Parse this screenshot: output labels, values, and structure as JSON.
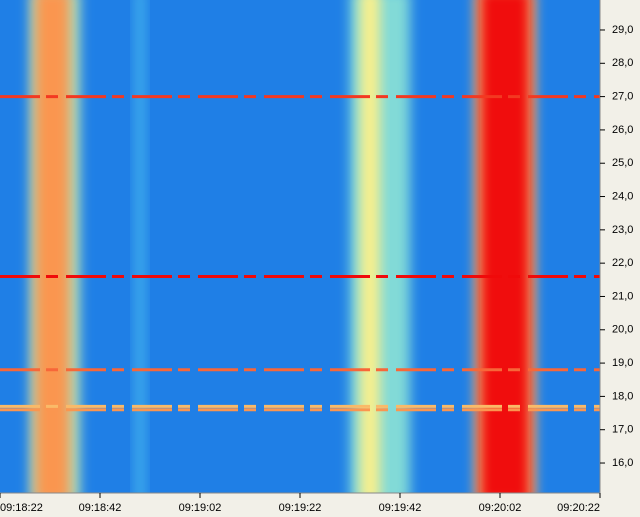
{
  "chart_data": {
    "type": "spectrogram",
    "background_color": "#1f7fe6",
    "xlim": [
      33502,
      33622
    ],
    "xticks": [
      {
        "value": 33502,
        "label": "09:18:22"
      },
      {
        "value": 33522,
        "label": "09:18:42"
      },
      {
        "value": 33542,
        "label": "09:19:02"
      },
      {
        "value": 33562,
        "label": "09:19:22"
      },
      {
        "value": 33582,
        "label": "09:19:42"
      },
      {
        "value": 33602,
        "label": "09:20:02"
      },
      {
        "value": 33622,
        "label": "09:20:22"
      }
    ],
    "ylim": [
      15.1,
      29.9
    ],
    "yticks": [
      {
        "value": 16,
        "label": "16,0"
      },
      {
        "value": 17,
        "label": "17,0"
      },
      {
        "value": 18,
        "label": "18,0"
      },
      {
        "value": 19,
        "label": "19,0"
      },
      {
        "value": 20,
        "label": "20,0"
      },
      {
        "value": 21,
        "label": "21,0"
      },
      {
        "value": 22,
        "label": "22,0"
      },
      {
        "value": 23,
        "label": "23,0"
      },
      {
        "value": 24,
        "label": "24,0"
      },
      {
        "value": 25,
        "label": "25,0"
      },
      {
        "value": 26,
        "label": "26,0"
      },
      {
        "value": 27,
        "label": "27,0"
      },
      {
        "value": 28,
        "label": "28,0"
      },
      {
        "value": 29,
        "label": "29,0"
      }
    ],
    "bands": [
      {
        "x_start": 33508,
        "x_end": 33518,
        "level": 0.35
      },
      {
        "x_start": 33509,
        "x_end": 33516,
        "level": 0.7
      },
      {
        "x_start": 33529,
        "x_end": 33531,
        "level": 0.15
      },
      {
        "x_start": 33572,
        "x_end": 33584,
        "level": 0.3
      },
      {
        "x_start": 33574,
        "x_end": 33578,
        "level": 0.45
      },
      {
        "x_start": 33597,
        "x_end": 33609,
        "level": 0.55
      },
      {
        "x_start": 33598,
        "x_end": 33608,
        "level": 1
      }
    ],
    "lines": [
      {
        "y": 27.0,
        "level": 0.9
      },
      {
        "y": 21.6,
        "level": 1
      },
      {
        "y": 18.8,
        "level": 0.8
      },
      {
        "y": 17.7,
        "level": 0.6
      },
      {
        "y": 17.6,
        "level": 0.7
      }
    ]
  }
}
